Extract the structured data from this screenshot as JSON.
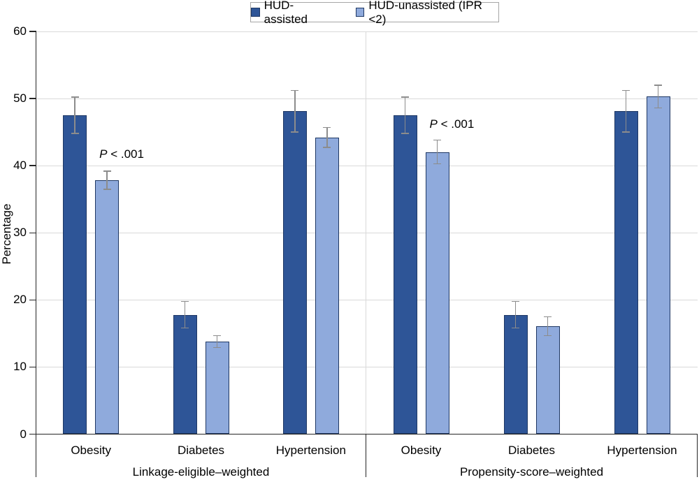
{
  "legend": {
    "items": [
      {
        "label": "HUD-assisted",
        "fill": "#2E5597",
        "border": "#1F3864"
      },
      {
        "label": "HUD-unassisted (IPR <2)",
        "fill": "#8FAADC",
        "border": "#1F3864"
      }
    ]
  },
  "chart_data": {
    "type": "bar",
    "title": "",
    "ylabel": "Percentage",
    "xlabel": "",
    "ylim": [
      0,
      60
    ],
    "yticks": [
      0,
      10,
      20,
      30,
      40,
      50,
      60
    ],
    "grid": true,
    "legend_position": "top-center",
    "series_names": [
      "HUD-assisted",
      "HUD-unassisted (IPR <2)"
    ],
    "panels": [
      {
        "label": "Linkage-eligible–weighted",
        "categories": [
          "Obesity",
          "Diabetes",
          "Hypertension"
        ],
        "series": [
          {
            "name": "HUD-assisted",
            "values": [
              47.5,
              17.7,
              48.1
            ],
            "ci_low": [
              44.8,
              15.8,
              45.0
            ],
            "ci_high": [
              50.2,
              19.8,
              51.2
            ]
          },
          {
            "name": "HUD-unassisted (IPR <2)",
            "values": [
              37.8,
              13.8,
              44.2
            ],
            "ci_low": [
              36.5,
              12.9,
              42.7
            ],
            "ci_high": [
              39.2,
              14.7,
              45.7
            ]
          }
        ],
        "annotation": {
          "text": "P < .001",
          "category_index": 0,
          "y_value": 41.7
        }
      },
      {
        "label": "Propensity-score–weighted",
        "categories": [
          "Obesity",
          "Diabetes",
          "Hypertension"
        ],
        "series": [
          {
            "name": "HUD-assisted",
            "values": [
              47.5,
              17.7,
              48.1
            ],
            "ci_low": [
              44.8,
              15.8,
              45.0
            ],
            "ci_high": [
              50.2,
              19.8,
              51.2
            ]
          },
          {
            "name": "HUD-unassisted (IPR <2)",
            "values": [
              42.0,
              16.1,
              50.3
            ],
            "ci_low": [
              40.3,
              14.7,
              48.6
            ],
            "ci_high": [
              43.8,
              17.5,
              52.0
            ]
          }
        ],
        "annotation": {
          "text": "P < .001",
          "category_index": 0,
          "y_value": 46.2
        }
      }
    ],
    "colors": {
      "assisted_fill": "#2E5597",
      "unassisted_fill": "#8FAADC",
      "bar_border": "#1F3864",
      "error_bar": "#8C8C8C",
      "gridline": "#D9D9D9",
      "axis": "#262626",
      "panel_divider_light": "#D9D9D9",
      "panel_divider_dark": "#262626",
      "legend_border": "#A6A6A6"
    }
  }
}
